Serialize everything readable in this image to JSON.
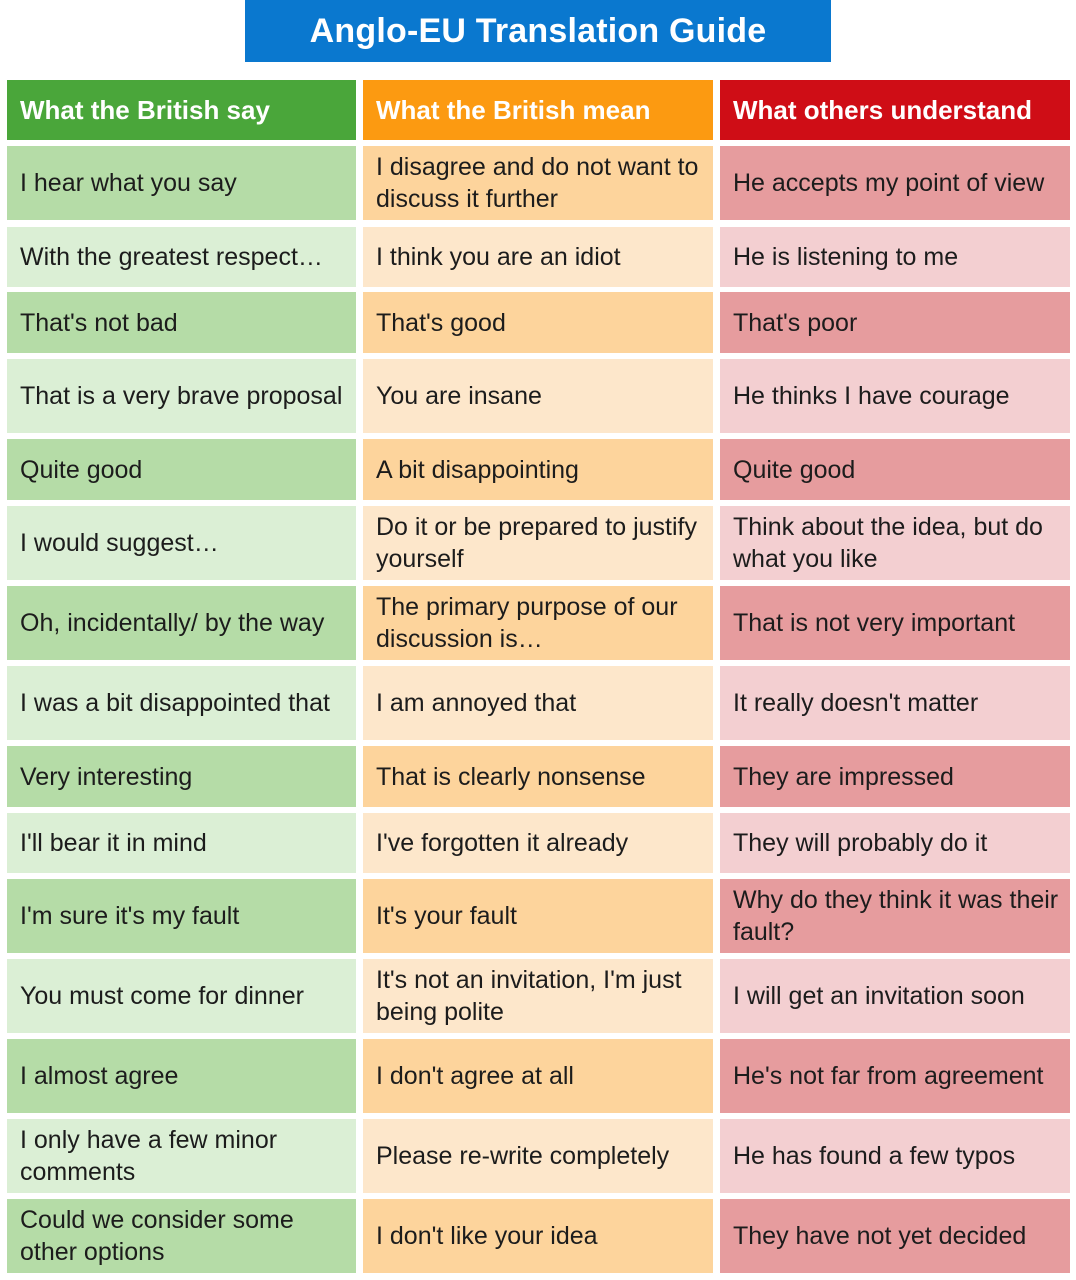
{
  "title": "Anglo-EU Translation Guide",
  "columns": [
    "What the British say",
    "What the British mean",
    "What others understand"
  ],
  "rows": [
    {
      "say": "I hear what you say",
      "mean": "I disagree and do not want to discuss it further",
      "understand": "He accepts my point of view"
    },
    {
      "say": "With the greatest respect…",
      "mean": "I think you are an idiot",
      "understand": "He is listening to me"
    },
    {
      "say": "That's not bad",
      "mean": "That's good",
      "understand": "That's poor"
    },
    {
      "say": "That is a very brave proposal",
      "mean": "You are insane",
      "understand": "He thinks I have courage"
    },
    {
      "say": "Quite good",
      "mean": "A bit disappointing",
      "understand": "Quite good"
    },
    {
      "say": "I would suggest…",
      "mean": "Do it or be prepared to justify yourself",
      "understand": "Think about the idea, but do what you like"
    },
    {
      "say": "Oh, incidentally/ by the way",
      "mean": "The primary purpose of our discussion is…",
      "understand": "That is not very important"
    },
    {
      "say": "I was a bit disappointed that",
      "mean": "I am annoyed that",
      "understand": "It really doesn't matter"
    },
    {
      "say": "Very interesting",
      "mean": "That is clearly nonsense",
      "understand": "They are impressed"
    },
    {
      "say": "I'll bear it in mind",
      "mean": "I've forgotten it already",
      "understand": "They will probably do it"
    },
    {
      "say": "I'm sure it's my fault",
      "mean": "It's your fault",
      "understand": "Why do they think it was their fault?"
    },
    {
      "say": "You must come for dinner",
      "mean": "It's not an invitation, I'm just being polite",
      "understand": "I will get an invitation soon"
    },
    {
      "say": "I almost agree",
      "mean": "I don't agree at all",
      "understand": "He's not far from agreement"
    },
    {
      "say": "I only have a few minor comments",
      "mean": "Please re-write completely",
      "understand": "He has found a few typos"
    },
    {
      "say": "Could we consider some other options",
      "mean": "I don't like your idea",
      "understand": "They have not yet decided"
    }
  ]
}
